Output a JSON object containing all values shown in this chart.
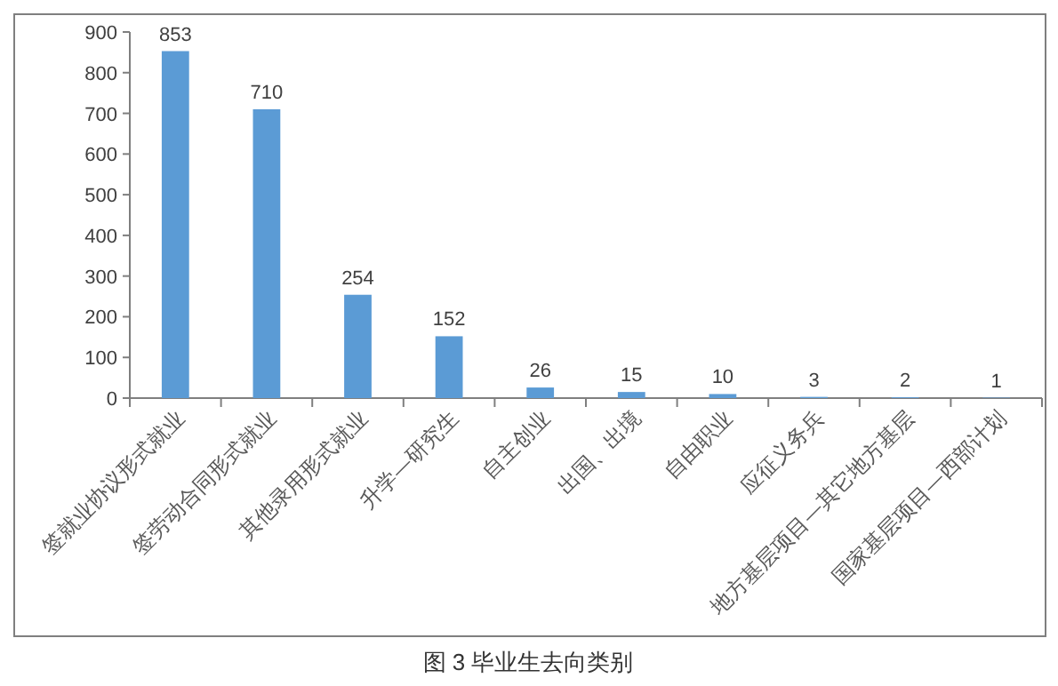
{
  "chart_data": {
    "type": "bar",
    "categories": [
      "签就业协议形式就业",
      "签劳动合同形式就业",
      "其他录用形式就业",
      "升学—研究生",
      "自主创业",
      "出国、出境",
      "自由职业",
      "应征义务兵",
      "地方基层项目—其它地方基层",
      "国家基层项目—西部计划"
    ],
    "values": [
      853,
      710,
      254,
      152,
      26,
      15,
      10,
      3,
      2,
      1
    ],
    "color": "#5b9bd5",
    "ylim": [
      0,
      900
    ],
    "yticks": [
      0,
      100,
      200,
      300,
      400,
      500,
      600,
      700,
      800,
      900
    ],
    "data_labels": true,
    "grid": false,
    "annotations": [
      "图 3 毕业生去向类别"
    ]
  }
}
